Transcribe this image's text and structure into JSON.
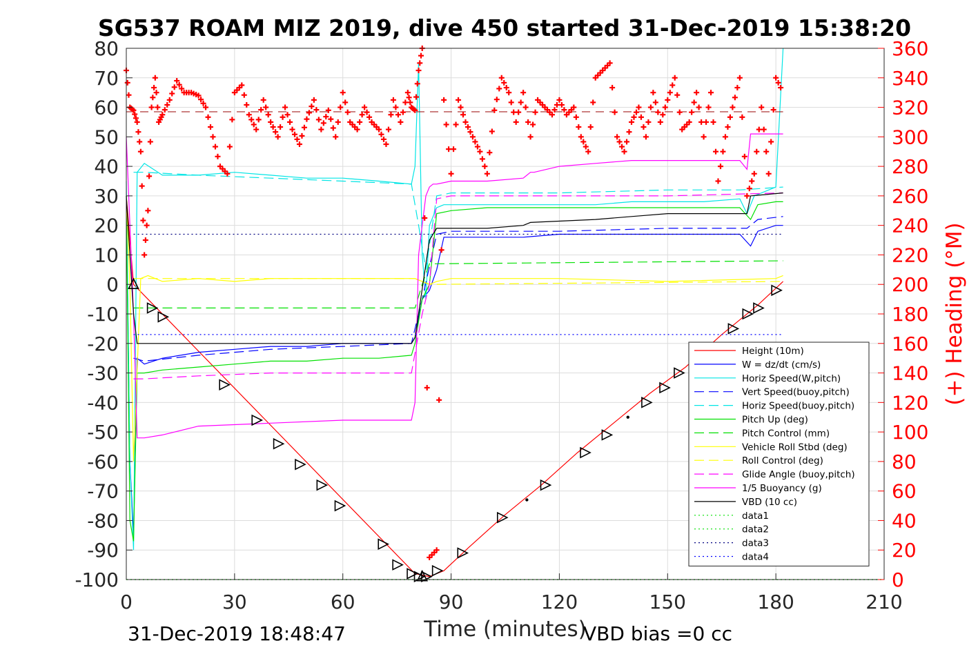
{
  "chart_data": {
    "type": "line",
    "title": "SG537 ROAM MIZ 2019, dive 450 started 31-Dec-2019 15:38:20",
    "xlabel": "Time (minutes)",
    "ylabel": "",
    "y2label": "(+) Heading (°M)",
    "footer_left": "31-Dec-2019 18:48:47",
    "footer_right": "VBD bias =0 cc",
    "xlim": [
      0,
      210
    ],
    "ylim": [
      -100,
      80
    ],
    "y2lim": [
      0,
      360
    ],
    "x_ticks": [
      0,
      30,
      60,
      90,
      120,
      150,
      180,
      210
    ],
    "y_ticks": [
      -100,
      -90,
      -80,
      -70,
      -60,
      -50,
      -40,
      -30,
      -20,
      -10,
      0,
      10,
      20,
      30,
      40,
      50,
      60,
      70,
      80
    ],
    "y2_ticks": [
      0,
      20,
      40,
      60,
      80,
      100,
      120,
      140,
      160,
      180,
      200,
      220,
      240,
      260,
      280,
      300,
      320,
      340,
      360
    ],
    "grid": true,
    "legend_position": "bottom-right",
    "legend": [
      {
        "label": "Height (10m)",
        "color": "#ff0000",
        "dash": "solid"
      },
      {
        "label": "W = dz/dt (cm/s)",
        "color": "#0000ff",
        "dash": "solid"
      },
      {
        "label": "Horiz Speed(W,pitch)",
        "color": "#00e5e5",
        "dash": "solid"
      },
      {
        "label": "Vert Speed(buoy,pitch)",
        "color": "#0000ff",
        "dash": "dashed"
      },
      {
        "label": "Horiz Speed(buoy,pitch)",
        "color": "#00e5e5",
        "dash": "dashed"
      },
      {
        "label": "Pitch Up (deg)",
        "color": "#00e000",
        "dash": "solid"
      },
      {
        "label": "Pitch Control (mm)",
        "color": "#00e000",
        "dash": "dashed"
      },
      {
        "label": "Vehicle Roll Stbd (deg)",
        "color": "#ffff00",
        "dash": "solid"
      },
      {
        "label": "Roll Control (deg)",
        "color": "#ffff00",
        "dash": "dashed"
      },
      {
        "label": "Glide Angle (buoy,pitch)",
        "color": "#ff00ff",
        "dash": "dashed"
      },
      {
        "label": "1/5 Buoyancy (g)",
        "color": "#ff00ff",
        "dash": "solid"
      },
      {
        "label": "VBD (10 cc)",
        "color": "#000000",
        "dash": "solid"
      },
      {
        "label": "data1",
        "color": "#00e000",
        "dash": "dotted"
      },
      {
        "label": "data2",
        "color": "#00e000",
        "dash": "dotted"
      },
      {
        "label": "data3",
        "color": "#000080",
        "dash": "dotted"
      },
      {
        "label": "data4",
        "color": "#0000ff",
        "dash": "dotted"
      }
    ],
    "series": [
      {
        "name": "Height (10m)",
        "color": "#ff0000",
        "dash": "solid",
        "x": [
          0,
          2,
          80,
          84,
          88,
          95,
          105,
          115,
          125,
          135,
          145,
          155,
          165,
          175,
          182
        ],
        "y": [
          30,
          0,
          -98,
          -99,
          -97,
          -89,
          -78,
          -68,
          -57,
          -47,
          -37,
          -28,
          -17,
          -7,
          1
        ]
      },
      {
        "name": "W = dz/dt (cm/s)",
        "color": "#0000ff",
        "dash": "solid",
        "x": [
          0,
          1,
          2,
          3,
          5,
          10,
          20,
          30,
          40,
          50,
          60,
          70,
          79,
          80,
          82,
          84,
          86,
          88,
          90,
          100,
          110,
          120,
          130,
          140,
          150,
          160,
          170,
          173,
          175,
          180,
          182
        ],
        "y": [
          30,
          -60,
          -85,
          -25,
          -27,
          -25,
          -23,
          -22,
          -21,
          -21,
          -20,
          -20,
          -20,
          -18,
          -5,
          -2,
          5,
          16,
          16,
          16,
          16,
          17,
          17,
          17,
          17,
          17,
          17,
          13,
          18,
          20,
          20
        ]
      },
      {
        "name": "Horiz Speed(W,pitch)",
        "color": "#00e5e5",
        "dash": "solid",
        "x": [
          0,
          1,
          2,
          3,
          5,
          10,
          20,
          30,
          40,
          50,
          60,
          70,
          79,
          80,
          81,
          82,
          83,
          84,
          86,
          88,
          90,
          100,
          110,
          120,
          130,
          140,
          150,
          160,
          170,
          172,
          174,
          180,
          182
        ],
        "y": [
          35,
          -60,
          -90,
          38,
          41,
          37,
          37,
          38,
          37,
          36,
          36,
          35,
          34,
          40,
          75,
          10,
          -5,
          20,
          26,
          27,
          27,
          27,
          27,
          27,
          27,
          28,
          28,
          28,
          29,
          24,
          30,
          33,
          80
        ]
      },
      {
        "name": "Vert Speed(buoy,pitch)",
        "color": "#0000ff",
        "dash": "dashed",
        "x": [
          2,
          5,
          20,
          40,
          60,
          79,
          82,
          86,
          90,
          120,
          150,
          172,
          175,
          182
        ],
        "y": [
          -25,
          -26,
          -24,
          -22,
          -21,
          -20,
          -5,
          17,
          18,
          18,
          19,
          19,
          22,
          23
        ]
      },
      {
        "name": "Horiz Speed(buoy,pitch)",
        "color": "#00e5e5",
        "dash": "dashed",
        "x": [
          2,
          5,
          20,
          40,
          60,
          79,
          81,
          83,
          86,
          90,
          120,
          150,
          170,
          182
        ],
        "y": [
          38,
          38,
          37,
          36,
          35,
          34,
          20,
          5,
          30,
          31,
          31,
          32,
          32,
          33
        ]
      },
      {
        "name": "Pitch Up (deg)",
        "color": "#00e000",
        "dash": "solid",
        "x": [
          0,
          1,
          2,
          3,
          5,
          10,
          20,
          30,
          40,
          50,
          60,
          70,
          79,
          80,
          82,
          84,
          86,
          90,
          100,
          120,
          140,
          160,
          170,
          173,
          175,
          180,
          182
        ],
        "y": [
          30,
          -80,
          -87,
          -30,
          -30,
          -29,
          -28,
          -27,
          -26,
          -26,
          -25,
          -25,
          -24,
          -20,
          -5,
          0,
          24,
          25,
          26,
          26,
          26,
          26,
          26,
          22,
          27,
          28,
          28
        ]
      },
      {
        "name": "Pitch Control (mm)",
        "color": "#00e000",
        "dash": "dashed",
        "x": [
          2,
          80,
          82,
          84,
          86,
          182
        ],
        "y": [
          -8,
          -8,
          0,
          7,
          7,
          8
        ]
      },
      {
        "name": "Vehicle Roll Stbd (deg)",
        "color": "#ffff00",
        "dash": "solid",
        "x": [
          0,
          1,
          2,
          4,
          6,
          10,
          20,
          30,
          40,
          50,
          60,
          70,
          80,
          84,
          86,
          90,
          120,
          150,
          180,
          182
        ],
        "y": [
          30,
          0,
          -60,
          2,
          3,
          1,
          2,
          1,
          2,
          2,
          2,
          2,
          2,
          0,
          1,
          2,
          2,
          1,
          2,
          3
        ]
      },
      {
        "name": "Roll Control (deg)",
        "color": "#ffff00",
        "dash": "dashed",
        "x": [
          2,
          80,
          84,
          182
        ],
        "y": [
          2,
          2,
          0,
          1
        ]
      },
      {
        "name": "Glide Angle (buoy,pitch)",
        "color": "#ff00ff",
        "dash": "dashed",
        "x": [
          2,
          5,
          20,
          40,
          60,
          79,
          82,
          84,
          86,
          90,
          120,
          150,
          182
        ],
        "y": [
          -32,
          -32,
          -31,
          -30,
          -30,
          -30,
          -10,
          0,
          29,
          30,
          30,
          30,
          31
        ]
      },
      {
        "name": "1/5 Buoyancy (g)",
        "color": "#ff00ff",
        "dash": "solid",
        "x": [
          0,
          2,
          3,
          5,
          10,
          20,
          40,
          60,
          79,
          80,
          81,
          82,
          83,
          84,
          85,
          86,
          90,
          100,
          110,
          112,
          113,
          120,
          130,
          140,
          150,
          160,
          170,
          172,
          173,
          182
        ],
        "y": [
          50,
          -10,
          -52,
          -52,
          -51,
          -48,
          -47,
          -46,
          -46,
          -40,
          10,
          20,
          30,
          33,
          34,
          34,
          35,
          35,
          36,
          38,
          38,
          40,
          41,
          42,
          42,
          42,
          42,
          39,
          51,
          51
        ]
      },
      {
        "name": "VBD (10 cc)",
        "color": "#000000",
        "dash": "solid",
        "x": [
          0,
          2,
          3,
          79,
          80,
          84,
          86,
          90,
          100,
          110,
          112,
          130,
          140,
          150,
          172,
          173,
          182
        ],
        "y": [
          30,
          -10,
          -20,
          -20,
          -18,
          15,
          19,
          19,
          19,
          20,
          21,
          22,
          23,
          24,
          24,
          30,
          31
        ]
      },
      {
        "name": "data1",
        "color": "#00e000",
        "dash": "dotted",
        "x": [
          0,
          210
        ],
        "y": [
          -100,
          -100
        ]
      },
      {
        "name": "data2",
        "color": "#00e000",
        "dash": "dotted",
        "x": [
          0,
          210
        ],
        "y": [
          -100,
          -100
        ]
      },
      {
        "name": "data3",
        "color": "#000080",
        "dash": "dotted",
        "x": [
          2,
          182
        ],
        "y": [
          17,
          17
        ]
      },
      {
        "name": "data4",
        "color": "#0000ff",
        "dash": "dotted",
        "x": [
          2,
          182
        ],
        "y": [
          -17,
          -17
        ]
      }
    ],
    "heading_reference": {
      "color": "#990000",
      "dash": "dashed",
      "y2": 317
    },
    "heading": {
      "color": "#ff0000",
      "marker": "+",
      "x": [
        0,
        1,
        2,
        3,
        4,
        5,
        6,
        7,
        8,
        9,
        10,
        12,
        14,
        16,
        18,
        20,
        22,
        24,
        26,
        28,
        30,
        32,
        34,
        36,
        38,
        40,
        42,
        44,
        46,
        48,
        50,
        52,
        54,
        56,
        58,
        60,
        62,
        64,
        66,
        68,
        70,
        72,
        74,
        76,
        78,
        79,
        80,
        81,
        82,
        84,
        86,
        88,
        90,
        92,
        94,
        96,
        98,
        100,
        102,
        104,
        106,
        108,
        110,
        112,
        114,
        116,
        118,
        120,
        122,
        124,
        126,
        128,
        130,
        132,
        134,
        136,
        138,
        140,
        142,
        144,
        146,
        148,
        150,
        152,
        154,
        156,
        158,
        160,
        162,
        164,
        166,
        168,
        170,
        172,
        174,
        176,
        178,
        180,
        182
      ],
      "y": [
        345,
        320,
        318,
        310,
        290,
        220,
        250,
        320,
        340,
        310,
        315,
        325,
        338,
        330,
        330,
        328,
        320,
        300,
        280,
        275,
        330,
        335,
        315,
        305,
        325,
        310,
        300,
        320,
        305,
        295,
        312,
        325,
        305,
        318,
        300,
        330,
        310,
        305,
        320,
        310,
        305,
        295,
        325,
        310,
        330,
        320,
        318,
        345,
        360,
        15,
        20,
        325,
        275,
        325,
        310,
        300,
        290,
        275,
        318,
        340,
        330,
        310,
        330,
        300,
        325,
        320,
        315,
        325,
        315,
        320,
        300,
        290,
        340,
        345,
        350,
        300,
        290,
        310,
        320,
        300,
        330,
        310,
        325,
        340,
        305,
        310,
        330,
        300,
        330,
        270,
        300,
        320,
        340,
        260,
        275,
        320,
        275,
        340,
        330
      ]
    },
    "markers": {
      "triangle_up": {
        "x": [
          2,
          82
        ],
        "y": [
          0,
          -99
        ]
      },
      "triangle_right": {
        "x": [
          7,
          10,
          27,
          36,
          42,
          48,
          54,
          59,
          71,
          75,
          79,
          81,
          83,
          86,
          93,
          104,
          116,
          127,
          133,
          144,
          149,
          153,
          168,
          172,
          175,
          180
        ],
        "y": [
          -8,
          -11,
          -34,
          -46,
          -54,
          -61,
          -68,
          -75,
          -88,
          -95,
          -98,
          -99,
          -99,
          -97,
          -91,
          -79,
          -68,
          -57,
          -51,
          -40,
          -35,
          -30,
          -15,
          -10,
          -8,
          -2
        ]
      },
      "dots": {
        "x": [
          111,
          139,
          161
        ],
        "y": [
          -73,
          -45,
          -22
        ]
      }
    }
  }
}
